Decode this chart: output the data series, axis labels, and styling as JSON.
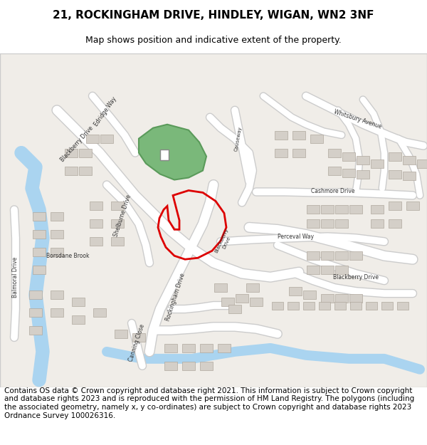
{
  "title": "21, ROCKINGHAM DRIVE, HINDLEY, WIGAN, WN2 3NF",
  "subtitle": "Map shows position and indicative extent of the property.",
  "footer": "Contains OS data © Crown copyright and database right 2021. This information is subject to Crown copyright and database rights 2023 and is reproduced with the permission of HM Land Registry. The polygons (including the associated geometry, namely x, y co-ordinates) are subject to Crown copyright and database rights 2023 Ordnance Survey 100026316.",
  "map_bg": "#f0ede8",
  "road_color": "#ffffff",
  "road_outline": "#cccccc",
  "building_color": "#d4cfc8",
  "building_outline": "#b0a89e",
  "water_color": "#aad4f0",
  "green_color": "#7ab87a",
  "green_outline": "#5a9a5a",
  "title_fontsize": 11,
  "subtitle_fontsize": 9,
  "footer_fontsize": 7.5,
  "fig_width": 6.0,
  "fig_height": 6.25
}
